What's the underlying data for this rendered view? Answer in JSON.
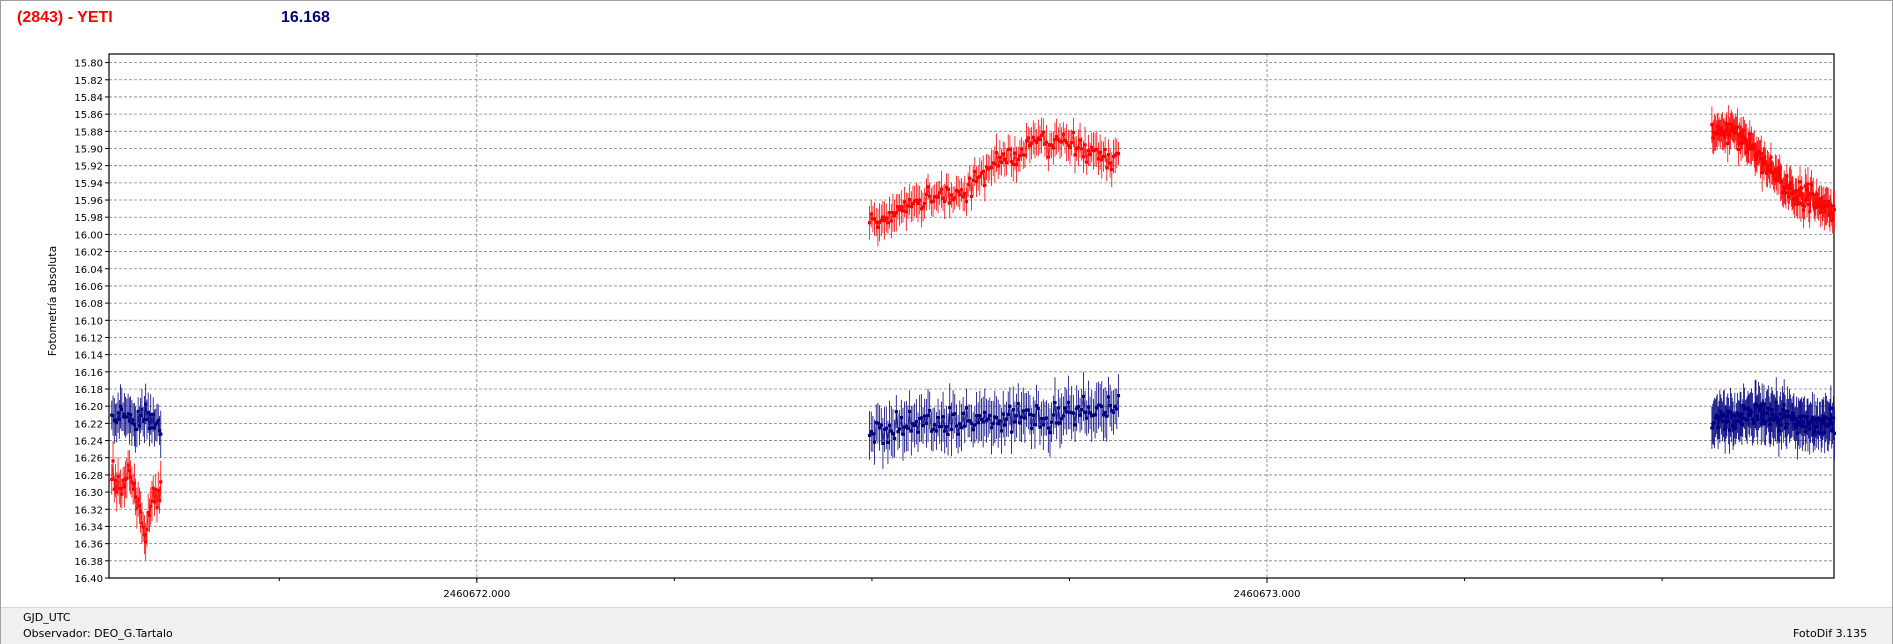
{
  "header": {
    "object": "(2843) - YETI",
    "value": "16.168"
  },
  "footer": {
    "xaxis_name": "GJD_UTC",
    "observer": "Observador: DEO_G.Tartalo",
    "software": "FotoDif 3.135"
  },
  "colors": {
    "series_object": "#ff0000",
    "series_comparison": "#000080",
    "grid": "#808080",
    "frame": "#000000"
  },
  "chart_data": {
    "type": "scatter",
    "title": "(2843) - YETI",
    "xlabel": "GJD_UTC",
    "ylabel": "Fotometría absoluta",
    "y_inverted": true,
    "ylim": [
      15.79,
      16.4
    ],
    "xlim": [
      2460671.5345,
      2460673.7175
    ],
    "y_ticks": [
      "15.80",
      "15.82",
      "15.84",
      "15.86",
      "15.88",
      "15.90",
      "15.92",
      "15.94",
      "15.96",
      "15.98",
      "16.00",
      "16.02",
      "16.04",
      "16.06",
      "16.08",
      "16.10",
      "16.12",
      "16.14",
      "16.16",
      "16.18",
      "16.20",
      "16.22",
      "16.24",
      "16.26",
      "16.28",
      "16.30",
      "16.32",
      "16.34",
      "16.36",
      "16.38",
      "16.40"
    ],
    "x_ticks": [
      {
        "value": 2460672.0,
        "label": "2460672.000"
      },
      {
        "value": 2460673.0,
        "label": "2460673.000"
      }
    ],
    "grid": true,
    "error_bars": true,
    "series": [
      {
        "color": "#ff0000",
        "segments": [
          {
            "x_start": 2460671.538,
            "x_end": 2460671.6,
            "y_nodes": [
              16.28,
              16.3,
              16.27,
              16.31,
              16.35,
              16.31,
              16.3
            ],
            "scatter": 0.012,
            "error": 0.02,
            "count": 40
          },
          {
            "x_start": 2460672.497,
            "x_end": 2460672.812,
            "y_nodes": [
              15.99,
              15.97,
              15.96,
              15.95,
              15.92,
              15.9,
              15.89,
              15.9,
              15.91
            ],
            "scatter": 0.012,
            "error": 0.018,
            "count": 150
          },
          {
            "x_start": 2460673.563,
            "x_end": 2460673.718,
            "y_nodes": [
              15.88,
              15.88,
              15.9,
              15.93,
              15.95,
              15.96,
              15.97
            ],
            "scatter": 0.012,
            "error": 0.018,
            "count": 140
          }
        ]
      },
      {
        "color": "#000080",
        "segments": [
          {
            "x_start": 2460671.538,
            "x_end": 2460671.6,
            "y_nodes": [
              16.22,
              16.21,
              16.22,
              16.21,
              16.23
            ],
            "scatter": 0.012,
            "error": 0.022,
            "count": 40
          },
          {
            "x_start": 2460672.497,
            "x_end": 2460672.812,
            "y_nodes": [
              16.23,
              16.22,
              16.22,
              16.21,
              16.21,
              16.2
            ],
            "scatter": 0.014,
            "error": 0.025,
            "count": 150
          },
          {
            "x_start": 2460673.563,
            "x_end": 2460673.718,
            "y_nodes": [
              16.22,
              16.21,
              16.21,
              16.22,
              16.22
            ],
            "scatter": 0.013,
            "error": 0.025,
            "count": 140
          }
        ]
      }
    ]
  }
}
